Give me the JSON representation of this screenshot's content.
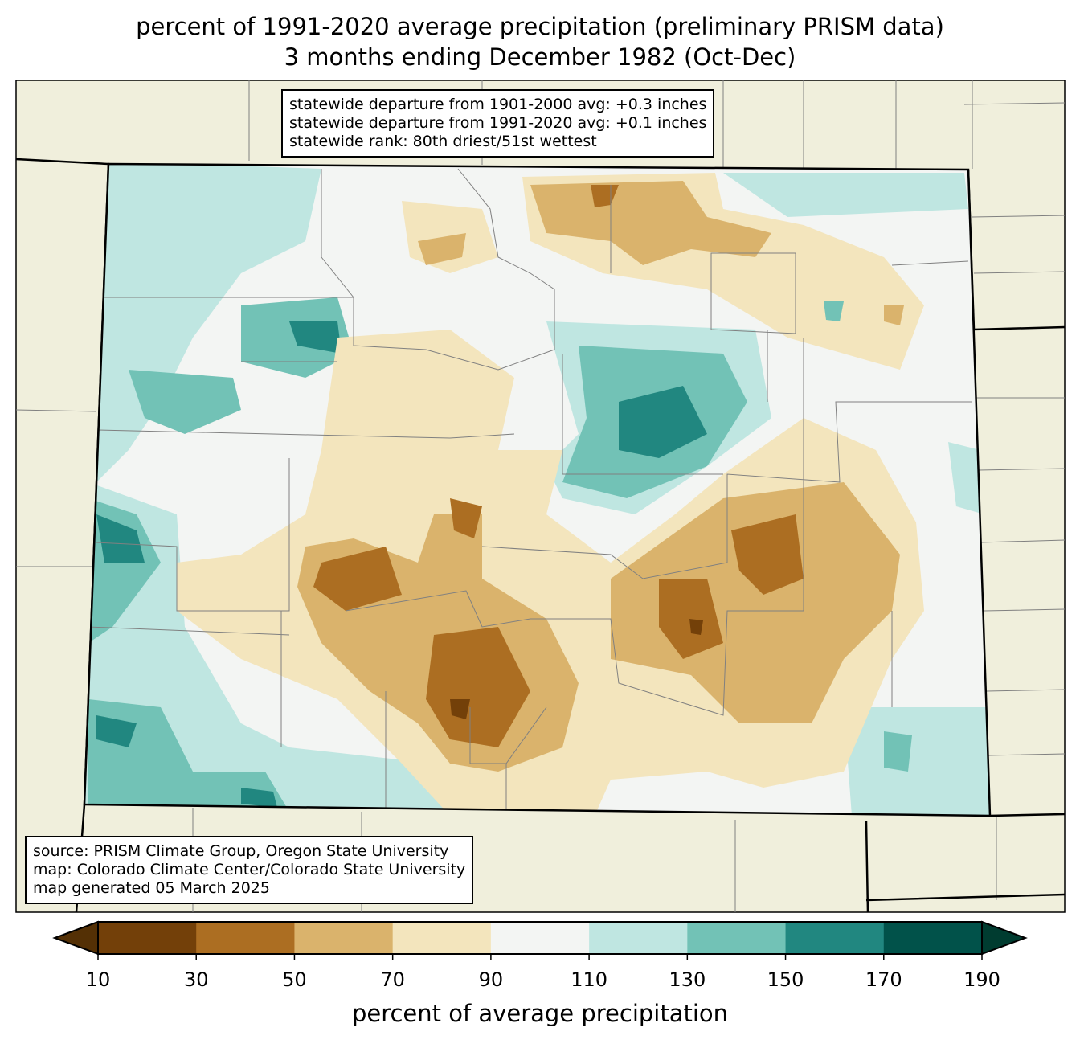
{
  "title": {
    "line1": "percent of 1991-2020 average precipitation (preliminary PRISM data)",
    "line2": "3 months ending December 1982 (Oct-Dec)"
  },
  "stats": {
    "line1": "statewide departure from 1901-2000 avg: +0.3 inches",
    "line2": "statewide departure from 1991-2020 avg: +0.1 inches",
    "line3": "statewide rank: 80th driest/51st wettest"
  },
  "source": {
    "line1": "source: PRISM Climate Group, Oregon State University",
    "line2": "map: Colorado Climate Center/Colorado State University",
    "line3": "map generated 05 March 2025"
  },
  "colorbar": {
    "label": "percent of average precipitation",
    "ticks": [
      "10",
      "30",
      "50",
      "70",
      "90",
      "110",
      "130",
      "150",
      "170",
      "190"
    ],
    "colors": [
      "#734009",
      "#ac6e22",
      "#dab36c",
      "#f3e5bd",
      "#f3f5f3",
      "#bfe6e1",
      "#72c2b6",
      "#218780",
      "#01524a"
    ],
    "under_color": "#543005",
    "over_color": "#003c30"
  },
  "map_colors": {
    "land": "#f0efdc",
    "county_lines": "#808080"
  }
}
